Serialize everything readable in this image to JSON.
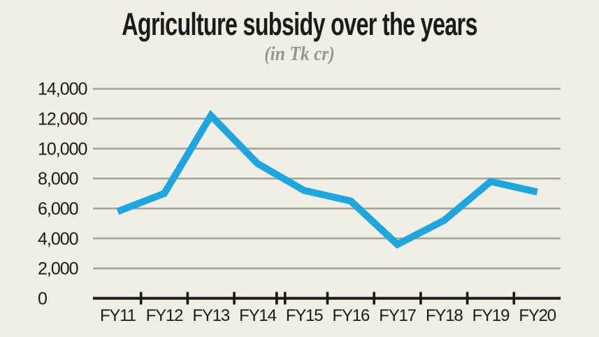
{
  "page": {
    "background_color": "#f0eee5"
  },
  "chart_data": {
    "type": "line",
    "title": "Agriculture subsidy over the years",
    "subtitle": "(in Tk cr)",
    "unit": "Tk cr",
    "categories": [
      "FY11",
      "FY12",
      "FY13",
      "FY14",
      "FY15",
      "FY16",
      "FY17",
      "FY18",
      "FY19",
      "FY20"
    ],
    "values": [
      5800,
      7000,
      12200,
      9000,
      7200,
      6500,
      3600,
      5200,
      7800,
      7100
    ],
    "xlabel": "",
    "ylabel": "",
    "ylim": [
      0,
      14000
    ],
    "y_tick_step": 2000,
    "y_tick_labels": [
      "0",
      "2,000",
      "4,000",
      "6,000",
      "8,000",
      "10,000",
      "12,000",
      "14,000"
    ],
    "grid": "horizontal",
    "legend": "none",
    "x_axis_break_after": "FY14",
    "line_color": "#1ea6e0",
    "axis_color": "#191917",
    "grid_color": "#a6a39a",
    "label_color": "#1b1b19",
    "title_color": "#1b1b19",
    "subtitle_color": "#989690"
  }
}
